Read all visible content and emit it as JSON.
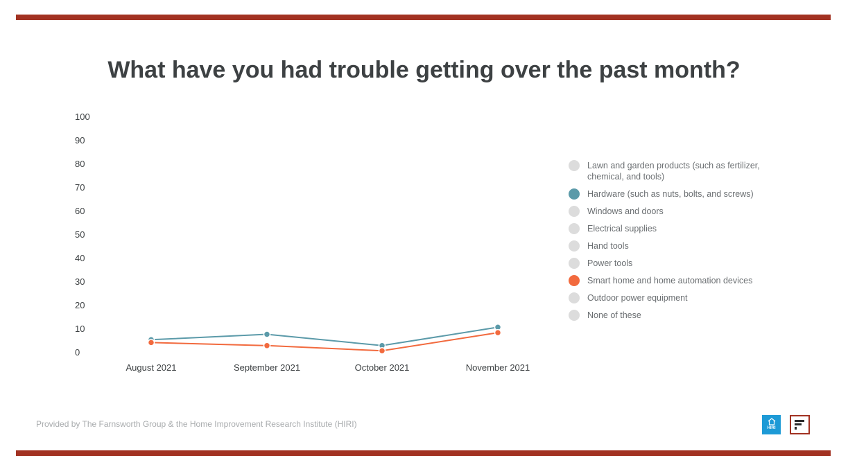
{
  "title": "What have you had trouble getting over the past month?",
  "footer": "Provided by The Farnsworth Group & the Home Improvement Research Institute (HIRI)",
  "logos": {
    "hiri_text": "HIRI"
  },
  "colors": {
    "accent_rule": "#a23222",
    "hardware": "#5b9aa9",
    "smart_home": "#f26a3e",
    "inactive": "#dcdcdc"
  },
  "chart_data": {
    "type": "line",
    "title": "What have you had trouble getting over the past month?",
    "categories": [
      "August 2021",
      "September 2021",
      "October 2021",
      "November 2021"
    ],
    "ylim": [
      0,
      100
    ],
    "yticks": [
      0,
      10,
      20,
      30,
      40,
      50,
      60,
      70,
      80,
      90,
      100
    ],
    "grid": false,
    "legend_position": "right",
    "legend": [
      {
        "name": "Lawn and garden products (such as fertilizer, chemical, and tools)",
        "color": "#dcdcdc"
      },
      {
        "name": "Hardware (such as nuts, bolts, and screws)",
        "color": "#5b9aa9"
      },
      {
        "name": "Windows and doors",
        "color": "#dcdcdc"
      },
      {
        "name": "Electrical supplies",
        "color": "#dcdcdc"
      },
      {
        "name": "Hand tools",
        "color": "#dcdcdc"
      },
      {
        "name": "Power tools",
        "color": "#dcdcdc"
      },
      {
        "name": "Smart home and home automation devices",
        "color": "#f26a3e"
      },
      {
        "name": "Outdoor power equipment",
        "color": "#dcdcdc"
      },
      {
        "name": "None of these",
        "color": "#dcdcdc"
      }
    ],
    "series": [
      {
        "name": "Hardware (such as nuts, bolts, and screws)",
        "color": "#5b9aa9",
        "values": [
          5.5,
          7.8,
          3.0,
          10.8
        ]
      },
      {
        "name": "Smart home and home automation devices",
        "color": "#f26a3e",
        "values": [
          4.3,
          3.0,
          0.8,
          8.5
        ]
      }
    ]
  }
}
